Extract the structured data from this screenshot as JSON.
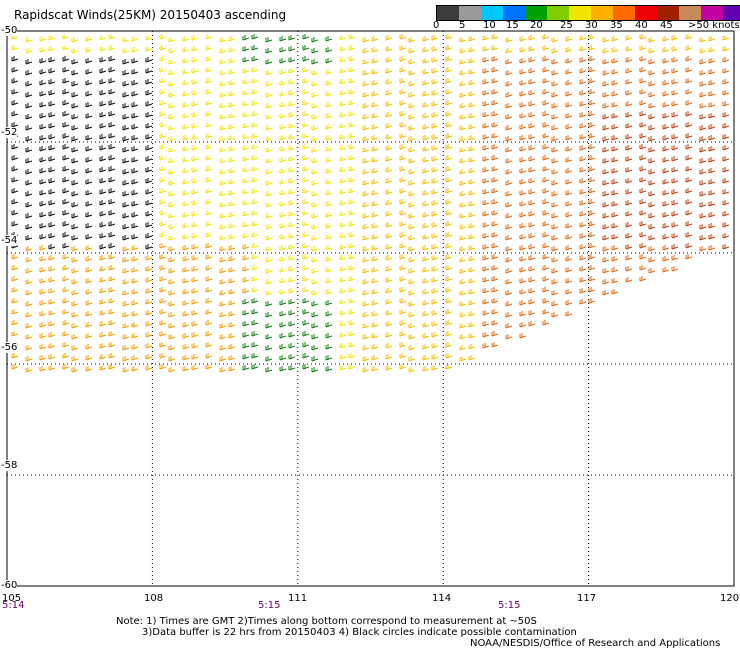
{
  "title": "Rapidscat Winds(25KM) 20150403 ascending",
  "legend": {
    "colors": [
      "#3c3c3c",
      "#9a9a9a",
      "#00c8ff",
      "#0073ff",
      "#00a000",
      "#7fcf00",
      "#f2e600",
      "#ffb000",
      "#ff6a00",
      "#f00000",
      "#a02000",
      "#c88a5a",
      "#c000a0",
      "#6000b0"
    ],
    "labels": [
      "0",
      "5",
      "10",
      "15",
      "20",
      "25",
      "30",
      "35",
      "40",
      "45",
      ">50 knots"
    ]
  },
  "x_axis": {
    "labels": [
      "105",
      "108",
      "111",
      "114",
      "117",
      "120"
    ]
  },
  "y_axis": {
    "labels": [
      "-50",
      "-52",
      "-54",
      "-56",
      "-58",
      "-60"
    ]
  },
  "times": [
    "5:14",
    "5:15",
    "5:15"
  ],
  "notes": {
    "line1": "Note: 1) Times are GMT 2)Times along bottom correspond to measurement at ~50S",
    "line2": "3)Data buffer is 22 hrs from 20150403 4) Black circles indicate possible contamination",
    "credit": "NOAA/NESDIS/Office of Research and Applications"
  }
}
